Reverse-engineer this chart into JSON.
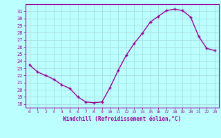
{
  "x": [
    0,
    1,
    2,
    3,
    4,
    5,
    6,
    7,
    8,
    9,
    10,
    11,
    12,
    13,
    14,
    15,
    16,
    17,
    18,
    19,
    20,
    21,
    22,
    23
  ],
  "y": [
    23.5,
    22.5,
    22.0,
    21.5,
    20.7,
    20.2,
    19.0,
    18.3,
    18.2,
    18.3,
    20.3,
    22.7,
    24.8,
    26.5,
    27.9,
    29.5,
    30.3,
    31.1,
    31.3,
    31.1,
    30.2,
    27.5,
    25.8,
    25.5
  ],
  "xlim": [
    -0.5,
    23.5
  ],
  "ylim": [
    17.5,
    32.0
  ],
  "yticks": [
    18,
    19,
    20,
    21,
    22,
    23,
    24,
    25,
    26,
    27,
    28,
    29,
    30,
    31
  ],
  "xticks": [
    0,
    1,
    2,
    3,
    4,
    5,
    6,
    7,
    8,
    9,
    10,
    11,
    12,
    13,
    14,
    15,
    16,
    17,
    18,
    19,
    20,
    21,
    22,
    23
  ],
  "xlabel": "Windchill (Refroidissement éolien,°C)",
  "line_color": "#990099",
  "marker_color": "#990099",
  "bg_color": "#bbffff",
  "grid_color": "#aadddd",
  "axis_label_color": "#990099",
  "tick_color": "#990099",
  "spine_color": "#990099"
}
